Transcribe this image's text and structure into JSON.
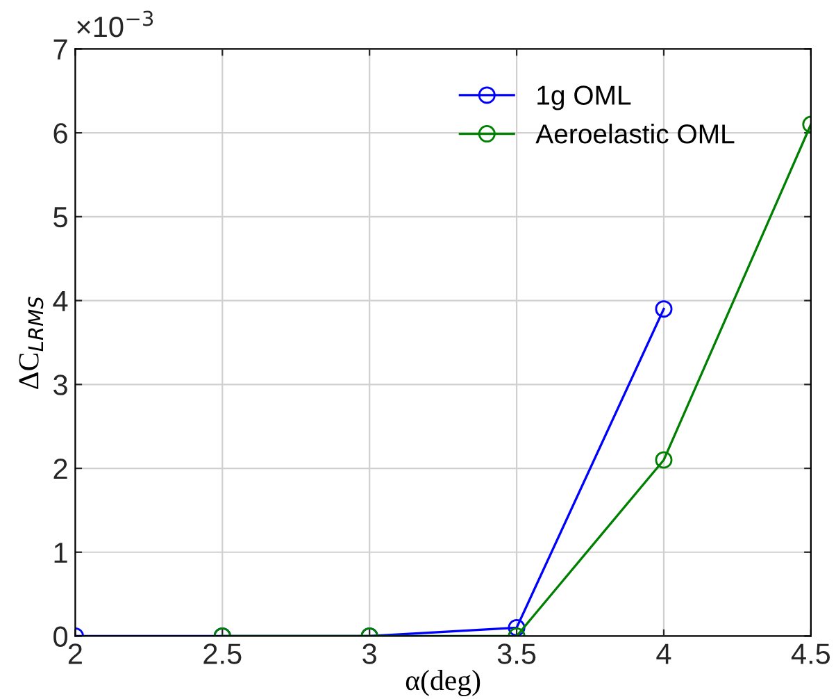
{
  "chart_data": {
    "type": "line",
    "xlabel": "α(deg)",
    "ylabel": "ΔC$_{LRMS}$",
    "x": [
      2,
      2.5,
      3,
      3.5,
      4,
      4.5
    ],
    "series": [
      {
        "name": "1g OML",
        "color": "#0000ff",
        "values": [
          0,
          0,
          0,
          0.1,
          3.9,
          null
        ]
      },
      {
        "name": "Aeroelastic OML",
        "color": "#008000",
        "values": [
          null,
          0,
          0,
          0,
          2.1,
          6.1
        ]
      }
    ],
    "xlim": [
      2,
      4.5
    ],
    "xticks": [
      2,
      2.5,
      3,
      3.5,
      4,
      4.5
    ],
    "ylim": [
      0,
      7
    ],
    "yticks": [
      0,
      1,
      2,
      3,
      4,
      5,
      6,
      7
    ],
    "annotations": [
      "×10$^{−3}$"
    ],
    "grid": true,
    "legend": "top right",
    "marker": "circle",
    "line_style": "solid"
  }
}
